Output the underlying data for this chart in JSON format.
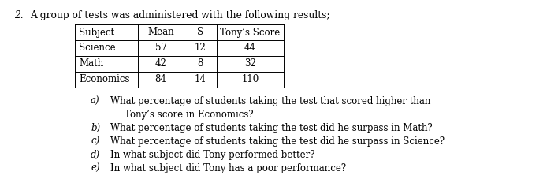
{
  "title_num": "2.",
  "title_text": "A group of tests was administered with the following results;",
  "table_headers": [
    "Subject",
    "Mean",
    "S",
    "Tony’s Score"
  ],
  "table_rows": [
    [
      "Science",
      "57",
      "12",
      "44"
    ],
    [
      "Math",
      "42",
      "8",
      "32"
    ],
    [
      "Economics",
      "84",
      "14",
      "110"
    ]
  ],
  "questions": [
    {
      "label": "a)",
      "text": "What percentage of students taking the test that scored higher than",
      "indent2": "Tony’s score in Economics?"
    },
    {
      "label": "b)",
      "text": "What percentage of students taking the test did he surpass in Math?",
      "indent2": null
    },
    {
      "label": "c)",
      "text": "What percentage of students taking the test did he surpass in Science?",
      "indent2": null
    },
    {
      "label": "d)",
      "text": "In what subject did Tony performed better?",
      "indent2": null
    },
    {
      "label": "e)",
      "text": "In what subject did Tony has a poor performance?",
      "indent2": null
    }
  ],
  "bg_color": "#ffffff",
  "font_size": 8.5,
  "title_font_size": 8.8
}
